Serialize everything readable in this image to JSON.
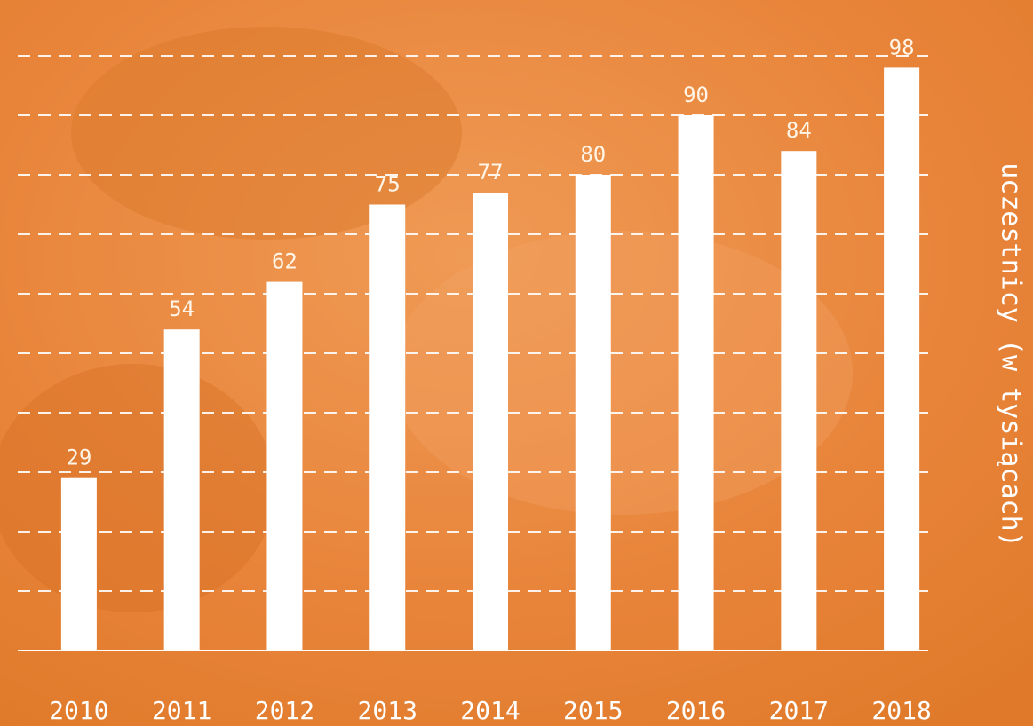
{
  "chart_data": {
    "type": "bar",
    "y_label": "uczestnicy (w tysiącach)",
    "categories": [
      "2010",
      "2011",
      "2012",
      "2013",
      "2014",
      "2015",
      "2016",
      "2017",
      "2018"
    ],
    "values": [
      29,
      54,
      62,
      75,
      77,
      80,
      90,
      84,
      98
    ],
    "color": "#ffffff",
    "ylim": [
      0,
      100
    ],
    "yticks": [
      10,
      20,
      30,
      40,
      50,
      60,
      70,
      80,
      90,
      100
    ],
    "grid": true
  }
}
